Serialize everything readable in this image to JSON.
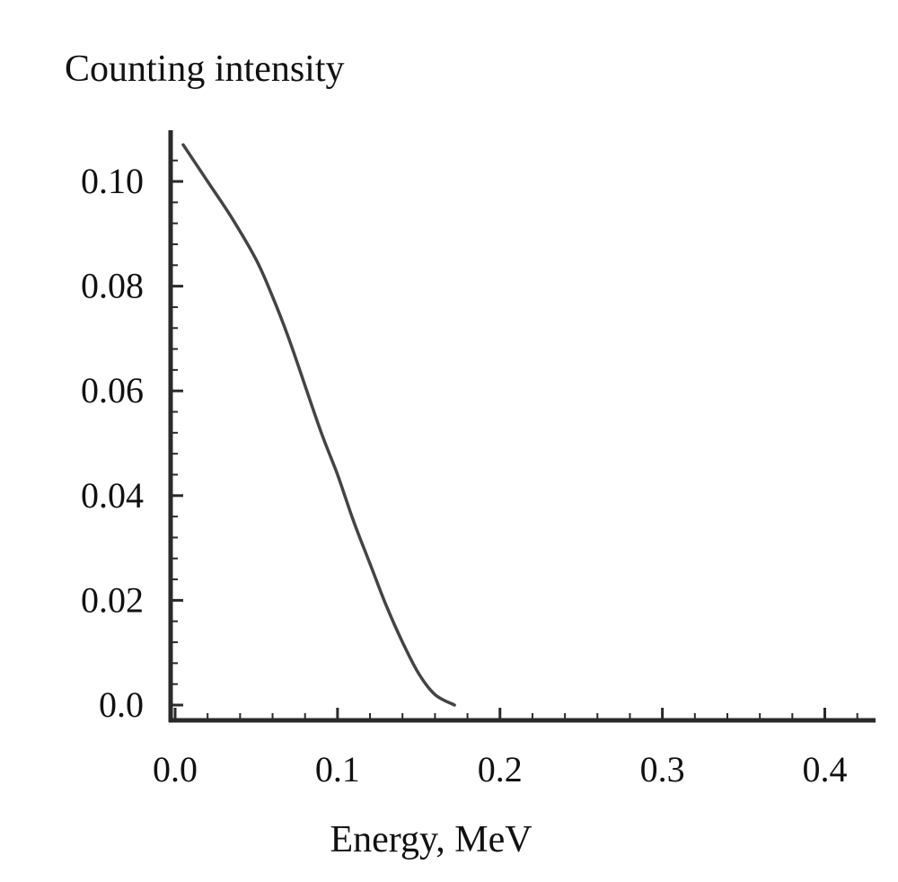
{
  "chart_data": {
    "type": "line",
    "ylabel": "Counting intensity",
    "xlabel": "Energy, MeV",
    "xlim": [
      0.0,
      0.43
    ],
    "ylim": [
      -0.003,
      0.11
    ],
    "xticks": [
      0.0,
      0.1,
      0.2,
      0.3,
      0.4
    ],
    "xtick_labels": [
      "0.0",
      "0.1",
      "0.2",
      "0.3",
      "0.4"
    ],
    "yticks": [
      0.0,
      0.02,
      0.04,
      0.06,
      0.08,
      0.1
    ],
    "ytick_labels": [
      "0.0",
      "0.02",
      "0.04",
      "0.06",
      "0.08",
      "0.10"
    ],
    "grid": false,
    "series": [
      {
        "x": [
          0.005,
          0.02,
          0.035,
          0.05,
          0.06,
          0.07,
          0.08,
          0.09,
          0.1,
          0.11,
          0.12,
          0.13,
          0.14,
          0.15,
          0.16,
          0.172
        ],
        "y": [
          0.107,
          0.1,
          0.093,
          0.085,
          0.078,
          0.07,
          0.061,
          0.052,
          0.044,
          0.035,
          0.027,
          0.019,
          0.012,
          0.006,
          0.002,
          0.0
        ]
      }
    ]
  }
}
